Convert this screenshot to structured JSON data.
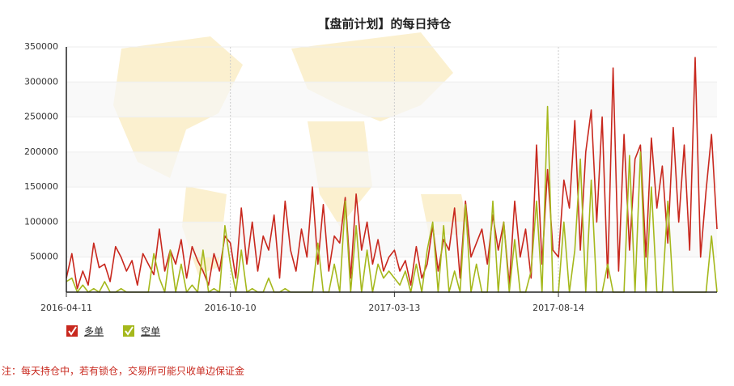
{
  "chart_data": {
    "type": "line",
    "title": "【盘前计划】的每日持仓",
    "categories": [
      "2016-04-11",
      null,
      null,
      null,
      null,
      null,
      null,
      null,
      null,
      null,
      null,
      null,
      null,
      null,
      null,
      null,
      null,
      null,
      null,
      null,
      null,
      null,
      null,
      null,
      null,
      null,
      null,
      null,
      null,
      null,
      "2016-10-10",
      null,
      null,
      null,
      null,
      null,
      null,
      null,
      null,
      null,
      null,
      null,
      null,
      null,
      null,
      null,
      null,
      null,
      null,
      null,
      null,
      null,
      null,
      null,
      null,
      null,
      null,
      null,
      null,
      null,
      "2017-03-13",
      null,
      null,
      null,
      null,
      null,
      null,
      null,
      null,
      null,
      null,
      null,
      null,
      null,
      null,
      null,
      null,
      null,
      null,
      null,
      null,
      null,
      null,
      null,
      null,
      null,
      null,
      null,
      null,
      null,
      "2017-08-14",
      null,
      null,
      null,
      null,
      null,
      null,
      null,
      null,
      null,
      null,
      null,
      null,
      null,
      null,
      null,
      null,
      null,
      null,
      null,
      null,
      null,
      null,
      null,
      null,
      null,
      null,
      null,
      null,
      null
    ],
    "series": [
      {
        "name": "多单",
        "color": "#c8281e",
        "values": [
          20000,
          55000,
          5000,
          30000,
          10000,
          70000,
          35000,
          40000,
          15000,
          65000,
          50000,
          30000,
          45000,
          10000,
          55000,
          40000,
          25000,
          90000,
          30000,
          60000,
          40000,
          75000,
          20000,
          65000,
          45000,
          30000,
          10000,
          55000,
          30000,
          80000,
          70000,
          20000,
          120000,
          40000,
          100000,
          30000,
          80000,
          60000,
          110000,
          20000,
          130000,
          60000,
          30000,
          90000,
          50000,
          150000,
          40000,
          125000,
          30000,
          80000,
          70000,
          135000,
          20000,
          140000,
          60000,
          100000,
          40000,
          75000,
          30000,
          50000,
          60000,
          30000,
          45000,
          10000,
          65000,
          20000,
          40000,
          95000,
          30000,
          75000,
          60000,
          120000,
          20000,
          130000,
          50000,
          70000,
          90000,
          40000,
          110000,
          60000,
          100000,
          10000,
          130000,
          50000,
          90000,
          20000,
          210000,
          40000,
          175000,
          60000,
          50000,
          160000,
          120000,
          245000,
          60000,
          200000,
          260000,
          100000,
          250000,
          20000,
          320000,
          30000,
          225000,
          60000,
          190000,
          210000,
          50000,
          220000,
          120000,
          180000,
          70000,
          235000,
          100000,
          210000,
          60000,
          335000,
          50000,
          145000,
          225000,
          90000
        ]
      },
      {
        "name": "空单",
        "color": "#a5b81c",
        "values": [
          15000,
          20000,
          0,
          10000,
          0,
          5000,
          0,
          15000,
          0,
          0,
          5000,
          0,
          0,
          0,
          0,
          0,
          55000,
          20000,
          0,
          60000,
          0,
          40000,
          0,
          10000,
          0,
          60000,
          0,
          5000,
          0,
          95000,
          40000,
          0,
          60000,
          0,
          5000,
          0,
          0,
          20000,
          0,
          0,
          5000,
          0,
          0,
          0,
          0,
          0,
          70000,
          0,
          0,
          40000,
          0,
          130000,
          0,
          95000,
          0,
          60000,
          0,
          40000,
          20000,
          30000,
          20000,
          10000,
          30000,
          0,
          40000,
          0,
          60000,
          100000,
          0,
          95000,
          0,
          30000,
          0,
          125000,
          0,
          40000,
          0,
          0,
          130000,
          0,
          100000,
          0,
          75000,
          0,
          0,
          30000,
          130000,
          0,
          265000,
          0,
          0,
          100000,
          0,
          60000,
          190000,
          0,
          160000,
          0,
          0,
          40000,
          0,
          0,
          0,
          195000,
          0,
          200000,
          0,
          150000,
          0,
          0,
          130000,
          0,
          0,
          0,
          0,
          0,
          0,
          0,
          80000,
          0
        ]
      }
    ],
    "ylim": [
      0,
      350000
    ],
    "yticks": [
      50000,
      100000,
      150000,
      200000,
      250000,
      300000,
      350000
    ],
    "note": "注：每天持仓中，若有锁仓，交易所可能只收单边保证金"
  }
}
